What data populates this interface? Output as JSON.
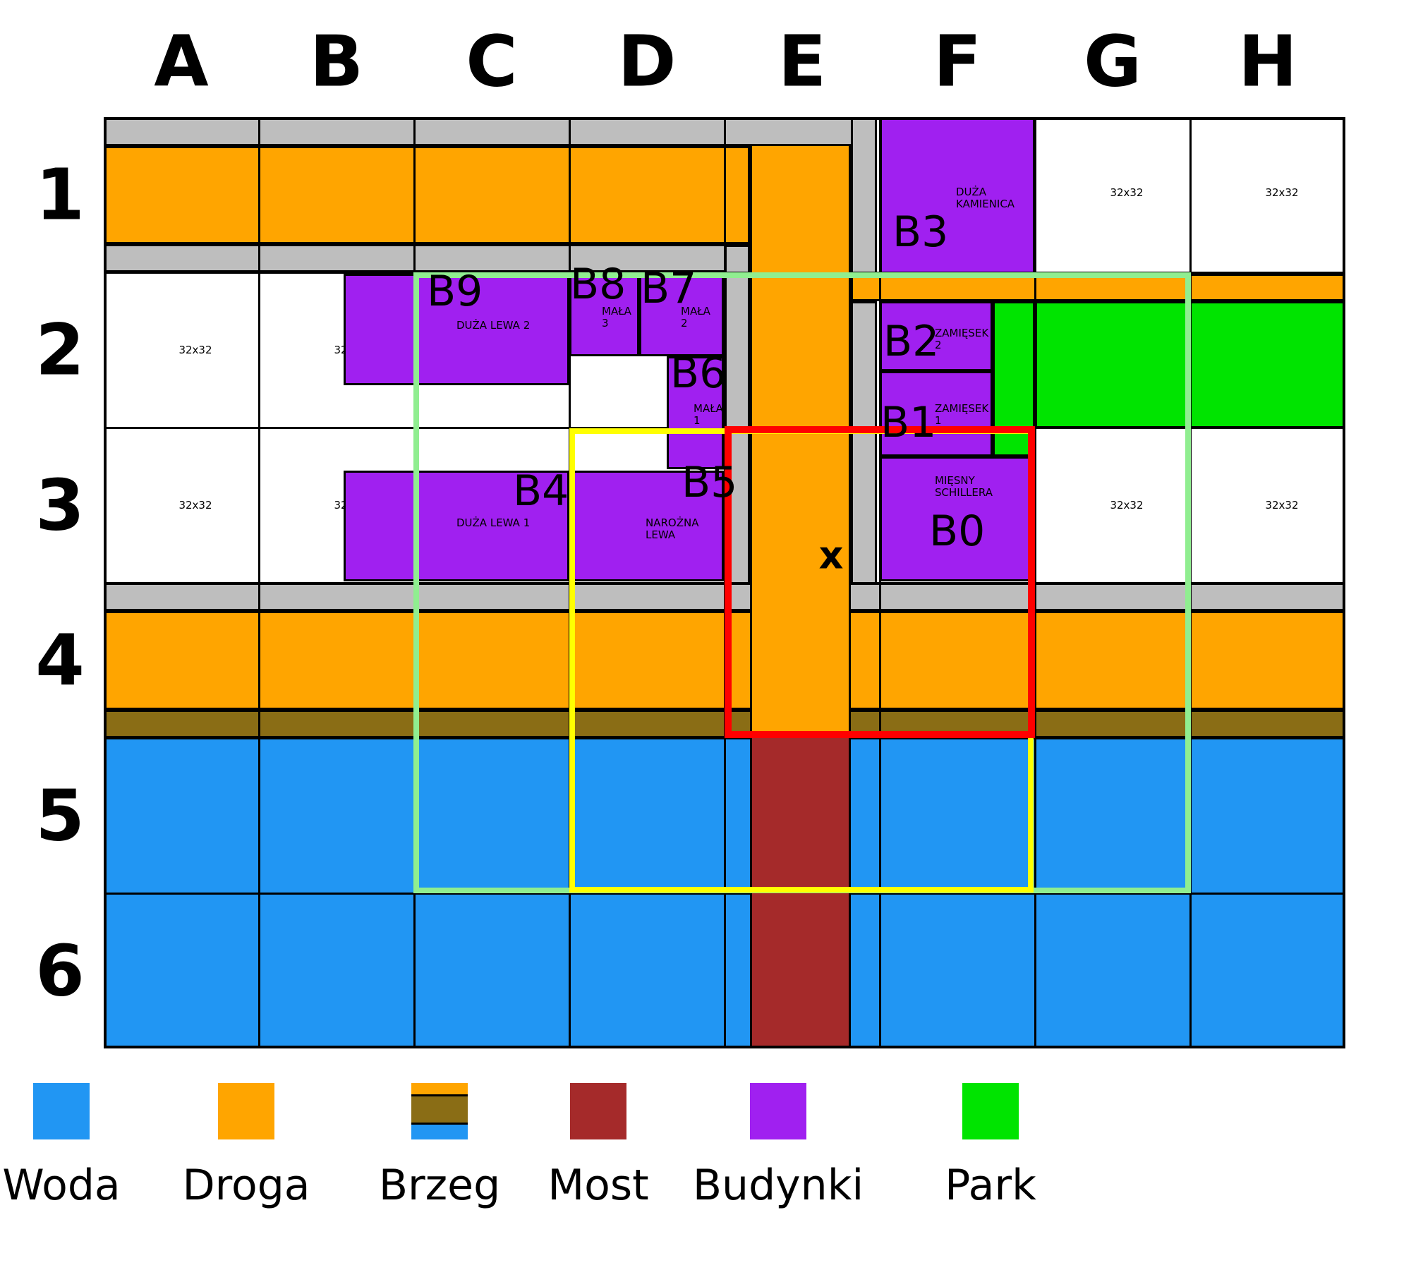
{
  "map": {
    "columns": [
      "A",
      "B",
      "C",
      "D",
      "E",
      "F",
      "G",
      "H"
    ],
    "rows": [
      "1",
      "2",
      "3",
      "4",
      "5",
      "6"
    ],
    "size_label": "32x32",
    "marker": "x"
  },
  "buildings": [
    {
      "id": "B0",
      "name": "MIĘSNY SCHILLERA",
      "name_lines": [
        "MIĘSNY",
        "SCHILLERA"
      ]
    },
    {
      "id": "B1",
      "name": "ZAMIĘSEK 1",
      "name_lines": [
        "ZAMIĘSEK",
        "1"
      ]
    },
    {
      "id": "B2",
      "name": "ZAMIĘSEK 2",
      "name_lines": [
        "ZAMIĘSEK",
        "2"
      ]
    },
    {
      "id": "B3",
      "name": "DUŻA KAMIENICA",
      "name_lines": [
        "DUŻA",
        "KAMIENICA"
      ]
    },
    {
      "id": "B4",
      "name": "DUŻA LEWA 1",
      "name_lines": [
        "DUŻA LEWA 1"
      ]
    },
    {
      "id": "B5",
      "name": "NAROŻNA LEWA",
      "name_lines": [
        "NAROŻNA",
        "LEWA"
      ]
    },
    {
      "id": "B6",
      "name": "MAŁA 1",
      "name_lines": [
        "MAŁA",
        "1"
      ]
    },
    {
      "id": "B7",
      "name": "MAŁA 2",
      "name_lines": [
        "MAŁA",
        "2"
      ]
    },
    {
      "id": "B8",
      "name": "MAŁA 3",
      "name_lines": [
        "MAŁA",
        "3"
      ]
    },
    {
      "id": "B9",
      "name": "DUŻA LEWA 2",
      "name_lines": [
        "DUŻA LEWA 2"
      ]
    }
  ],
  "legend": [
    {
      "label": "Woda",
      "type": "woda"
    },
    {
      "label": "Droga",
      "type": "droga"
    },
    {
      "label": "Brzeg",
      "type": "brzeg"
    },
    {
      "label": "Most",
      "type": "most"
    },
    {
      "label": "Budynki",
      "type": "budynki"
    },
    {
      "label": "Park",
      "type": "park"
    }
  ],
  "colors": {
    "woda": "#2196F3",
    "droga": "#FFA500",
    "chodnik": "#BEBEBE",
    "brzeg": "#8A6D15",
    "most": "#A52A2A",
    "budynki": "#A020F0",
    "park": "#00E400",
    "overlay_green": "#90EE90",
    "overlay_yellow": "#FFFF00",
    "overlay_red": "#FF0000"
  }
}
